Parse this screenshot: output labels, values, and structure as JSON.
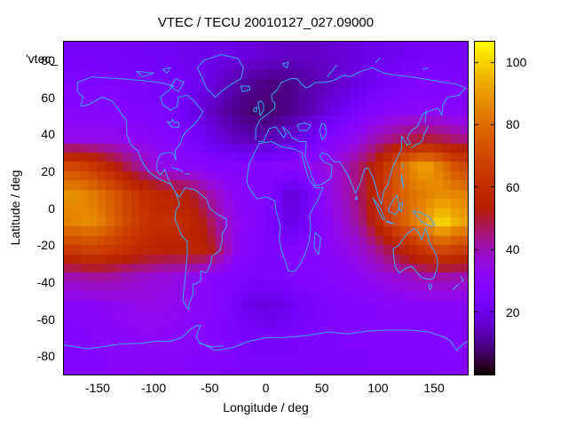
{
  "title": "VTEC / TECU 20010127_027.09000",
  "key_label": "'vtec_",
  "axes": {
    "xlabel": "Longitude / deg",
    "ylabel": "Latitude / deg",
    "x_ticks": [
      -150,
      -100,
      -50,
      0,
      50,
      100,
      150
    ],
    "y_ticks": [
      80,
      60,
      40,
      20,
      0,
      -20,
      -40,
      -60,
      -80
    ],
    "x_range": [
      -180,
      180
    ],
    "y_range": [
      -90,
      90
    ]
  },
  "colorbar": {
    "ticks": [
      20,
      40,
      60,
      80,
      100
    ],
    "min": 0,
    "max": 106.5,
    "palette": "gnuplot-pm3d-rgbformulae-7-5-15"
  },
  "map": {
    "coastline_color": "#3fa8f8"
  },
  "chart_data": {
    "type": "heatmap",
    "title": "VTEC / TECU 20010127_027.09000",
    "xlabel": "Longitude / deg",
    "ylabel": "Latitude / deg",
    "units": "TECU",
    "xlim": [
      -180,
      180
    ],
    "ylim": [
      -90,
      90
    ],
    "color_range": [
      0,
      106.5
    ],
    "lon_centers_start": -172.5,
    "lon_step": 15,
    "lat_centers_start": 82.5,
    "lat_step": -15,
    "cols": 24,
    "rows": 12,
    "values": [
      [
        24,
        24,
        24,
        23,
        22,
        22,
        22,
        21,
        20,
        19,
        18,
        17,
        16,
        15,
        15,
        16,
        17,
        18,
        20,
        21,
        22,
        23,
        24,
        24
      ],
      [
        26,
        26,
        26,
        26,
        25,
        24,
        23,
        22,
        19,
        15,
        12,
        10,
        9,
        10,
        12,
        14,
        16,
        19,
        22,
        24,
        26,
        27,
        27,
        26
      ],
      [
        29,
        29,
        29,
        28,
        27,
        26,
        24,
        20,
        16,
        12,
        9,
        7,
        8,
        10,
        13,
        17,
        21,
        25,
        28,
        30,
        31,
        31,
        30,
        29
      ],
      [
        34,
        34,
        34,
        33,
        32,
        30,
        28,
        25,
        21,
        17,
        14,
        13,
        14,
        17,
        21,
        26,
        30,
        34,
        40,
        44,
        48,
        50,
        48,
        44
      ],
      [
        70,
        66,
        58,
        50,
        42,
        35,
        32,
        30,
        29,
        28,
        28,
        28,
        29,
        30,
        32,
        35,
        38,
        45,
        55,
        70,
        85,
        92,
        82,
        70
      ],
      [
        88,
        85,
        78,
        70,
        62,
        58,
        55,
        52,
        42,
        35,
        30,
        28,
        25,
        16,
        22,
        32,
        38,
        45,
        58,
        72,
        80,
        85,
        88,
        85
      ],
      [
        85,
        88,
        82,
        72,
        65,
        60,
        62,
        58,
        50,
        38,
        32,
        28,
        24,
        18,
        24,
        30,
        36,
        42,
        55,
        70,
        80,
        90,
        102,
        92
      ],
      [
        65,
        68,
        66,
        62,
        58,
        56,
        55,
        56,
        55,
        42,
        30,
        27,
        26,
        27,
        28,
        30,
        33,
        36,
        42,
        50,
        58,
        65,
        70,
        66
      ],
      [
        40,
        42,
        42,
        40,
        38,
        36,
        35,
        33,
        30,
        28,
        26,
        25,
        26,
        27,
        28,
        29,
        30,
        32,
        34,
        36,
        38,
        40,
        41,
        40
      ],
      [
        30,
        31,
        32,
        33,
        34,
        34,
        33,
        32,
        30,
        27,
        22,
        18,
        18,
        21,
        24,
        26,
        27,
        28,
        29,
        30,
        30,
        30,
        30,
        30
      ],
      [
        28,
        29,
        30,
        31,
        32,
        32,
        31,
        30,
        29,
        27,
        25,
        23,
        23,
        24,
        25,
        26,
        27,
        27,
        28,
        28,
        28,
        28,
        28,
        28
      ],
      [
        28,
        28,
        29,
        29,
        30,
        30,
        29,
        29,
        28,
        27,
        26,
        25,
        25,
        25,
        26,
        26,
        26,
        26,
        27,
        27,
        27,
        27,
        28,
        28
      ]
    ]
  }
}
